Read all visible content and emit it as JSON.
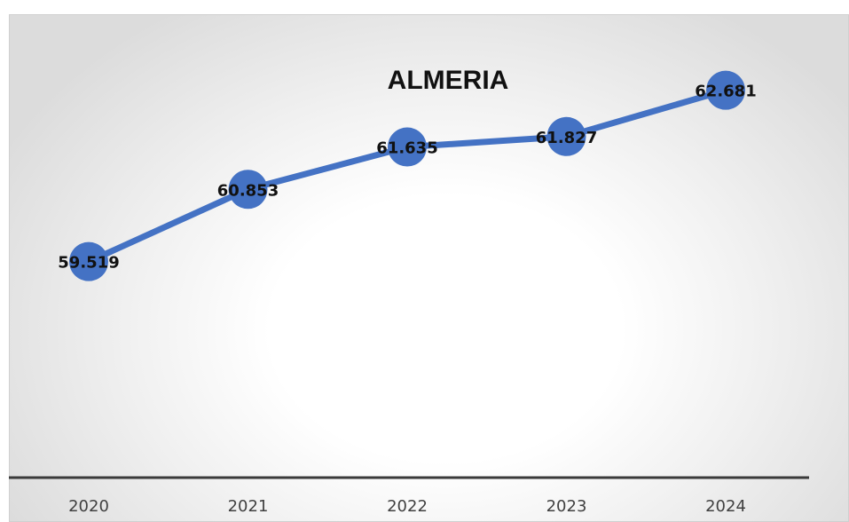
{
  "chart_data": {
    "type": "line",
    "title": "ALMERIA",
    "categories": [
      "2020",
      "2021",
      "2022",
      "2023",
      "2024"
    ],
    "series": [
      {
        "values": [
          59.519,
          60.853,
          61.635,
          61.827,
          62.681
        ],
        "labels": [
          "59.519",
          "60.853",
          "61.635",
          "61.827",
          "62.681"
        ],
        "color": "#4472C4"
      }
    ],
    "xlabel": "",
    "ylabel": "",
    "ylim": [
      55.5,
      63.2
    ],
    "grid": false,
    "legend": "none"
  }
}
